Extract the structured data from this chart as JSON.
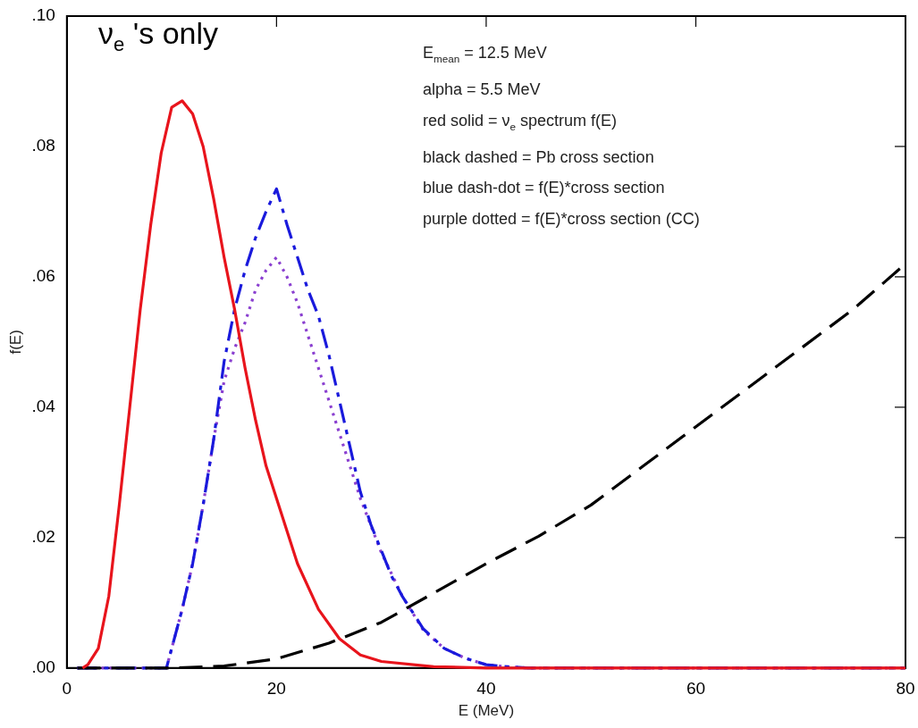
{
  "chart_data": {
    "type": "line",
    "xlabel": "E (MeV)",
    "ylabel": "f(E)",
    "xlim": [
      0,
      80
    ],
    "xticks": [
      0,
      20,
      40,
      60,
      80
    ],
    "ylim": [
      0,
      0.1
    ],
    "yticks": [
      {
        "value": 0,
        "label": ".00"
      },
      {
        "value": 0.02,
        "label": ".02"
      },
      {
        "value": 0.04,
        "label": ".04"
      },
      {
        "value": 0.06,
        "label": ".06"
      },
      {
        "value": 0.08,
        "label": ".08"
      },
      {
        "value": 0.1,
        "label": ".10"
      }
    ],
    "grid": false,
    "legend": false,
    "marker": "none",
    "annotations": [
      "ν$_{e}$ 's only",
      "E$_{mean}$ = 12.5 MeV",
      "alpha = 5.5 MeV",
      "red solid = ν$_{e}$ spectrum f(E)",
      "black dashed = Pb cross section",
      "blue dash-dot = f(E)*cross section",
      "purple dotted = f(E)*cross section (CC)"
    ],
    "series": [
      {
        "color": "#e8141c",
        "line_style": "solid",
        "x": [
          1.5,
          2,
          3,
          4,
          5,
          6,
          7,
          8,
          9,
          10,
          11,
          12,
          13,
          14,
          15,
          16,
          17,
          18,
          19,
          20,
          22,
          24,
          26,
          28,
          30,
          35,
          40,
          80
        ],
        "values": [
          0,
          0.0005,
          0.003,
          0.011,
          0.025,
          0.04,
          0.055,
          0.068,
          0.079,
          0.086,
          0.087,
          0.085,
          0.08,
          0.072,
          0.063,
          0.055,
          0.046,
          0.038,
          0.031,
          0.026,
          0.016,
          0.009,
          0.0045,
          0.002,
          0.001,
          0.0002,
          0,
          0
        ]
      },
      {
        "color": "#000000",
        "line_style": "dashed",
        "x": [
          1,
          10,
          15,
          20,
          25,
          30,
          35,
          40,
          45,
          50,
          55,
          60,
          65,
          70,
          75,
          80
        ],
        "values": [
          0,
          0,
          0.0003,
          0.0014,
          0.0038,
          0.007,
          0.0115,
          0.016,
          0.0202,
          0.025,
          0.031,
          0.037,
          0.043,
          0.049,
          0.055,
          0.062
        ]
      },
      {
        "color": "#1a1adc",
        "line_style": "dashdot",
        "x": [
          1,
          9.5,
          10,
          11,
          12,
          13,
          14,
          15,
          16,
          17,
          18,
          19,
          20,
          21,
          22,
          23,
          24,
          25,
          26,
          27,
          28,
          29,
          30,
          31,
          32,
          34,
          36,
          38,
          40,
          42,
          44,
          80
        ],
        "values": [
          0,
          0,
          0.003,
          0.009,
          0.016,
          0.025,
          0.035,
          0.047,
          0.055,
          0.061,
          0.066,
          0.07,
          0.0735,
          0.068,
          0.063,
          0.058,
          0.054,
          0.048,
          0.041,
          0.034,
          0.027,
          0.022,
          0.018,
          0.014,
          0.011,
          0.006,
          0.003,
          0.0015,
          0.0005,
          0.0002,
          0,
          0
        ]
      },
      {
        "color": "#8a3fd0",
        "line_style": "dotted",
        "x": [
          1,
          9.5,
          10,
          11,
          12,
          13,
          14,
          15,
          16,
          17,
          18,
          19,
          20,
          21,
          22,
          23,
          24,
          25,
          26,
          27,
          28,
          30,
          32,
          34,
          36,
          38,
          40,
          42,
          44,
          80
        ],
        "values": [
          0,
          0,
          0.003,
          0.009,
          0.016,
          0.025,
          0.035,
          0.044,
          0.049,
          0.053,
          0.058,
          0.061,
          0.063,
          0.06,
          0.056,
          0.051,
          0.046,
          0.041,
          0.036,
          0.031,
          0.026,
          0.0177,
          0.011,
          0.0058,
          0.003,
          0.0015,
          0.0005,
          0.0002,
          0,
          0
        ]
      }
    ]
  }
}
